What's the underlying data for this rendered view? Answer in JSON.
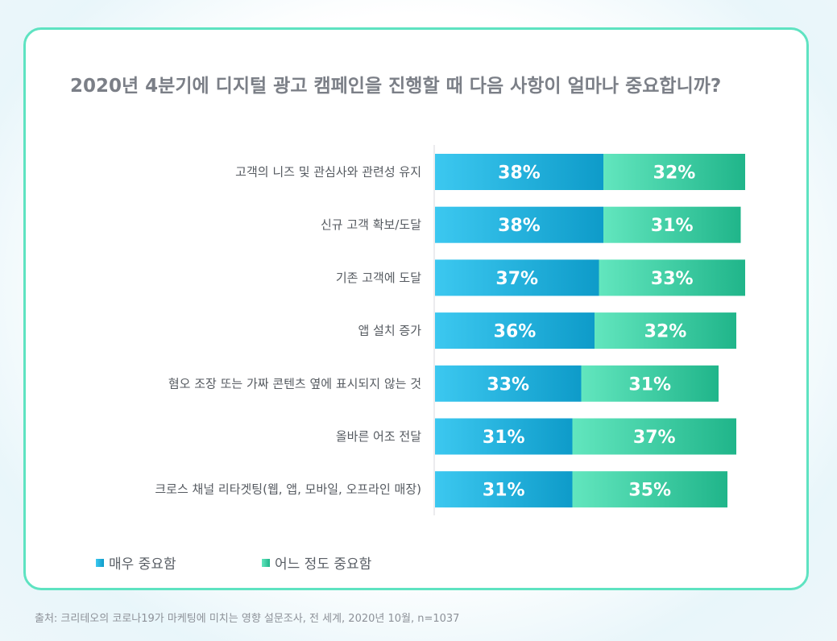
{
  "title": "2020년 4분기에 디지털 광고 캠페인을 진행할 때 다음 사항이 얼마나 중요합니까?",
  "colors": {
    "border": "#5ee3c1",
    "very_start": "#3cc8f0",
    "very_end": "#0e9bc9",
    "some_start": "#62e6be",
    "some_end": "#20b58a"
  },
  "chart_data": {
    "type": "bar",
    "orientation": "horizontal",
    "stacked": true,
    "title": "2020년 4분기에 디지털 광고 캠페인을 진행할 때 다음 사항이 얼마나 중요합니까?",
    "categories": [
      "고객의 니즈 및 관심사와 관련성 유지",
      "신규 고객 확보/도달",
      "기존 고객에 도달",
      "앱 설치 증가",
      "혐오 조장 또는 가짜 콘텐츠 옆에 표시되지 않는 것",
      "올바른 어조 전달",
      "크로스 채널 리타겟팅(웹, 앱, 모바일, 오프라인 매장)"
    ],
    "series": [
      {
        "name": "매우 중요함",
        "values": [
          38,
          38,
          37,
          36,
          33,
          31,
          31
        ]
      },
      {
        "name": "어느 정도 중요함",
        "values": [
          32,
          31,
          33,
          32,
          31,
          37,
          35
        ]
      }
    ],
    "value_suffix": "%",
    "xlim": [
      0,
      100
    ],
    "grid": false,
    "legend_position": "bottom-left"
  },
  "legend": {
    "items": [
      "매우 중요함",
      "어느 정도 중요함"
    ]
  },
  "source": "출처: 크리테오의 코로나19가 마케팅에 미치는 영향 설문조사, 전 세계, 2020년 10월, n=1037"
}
